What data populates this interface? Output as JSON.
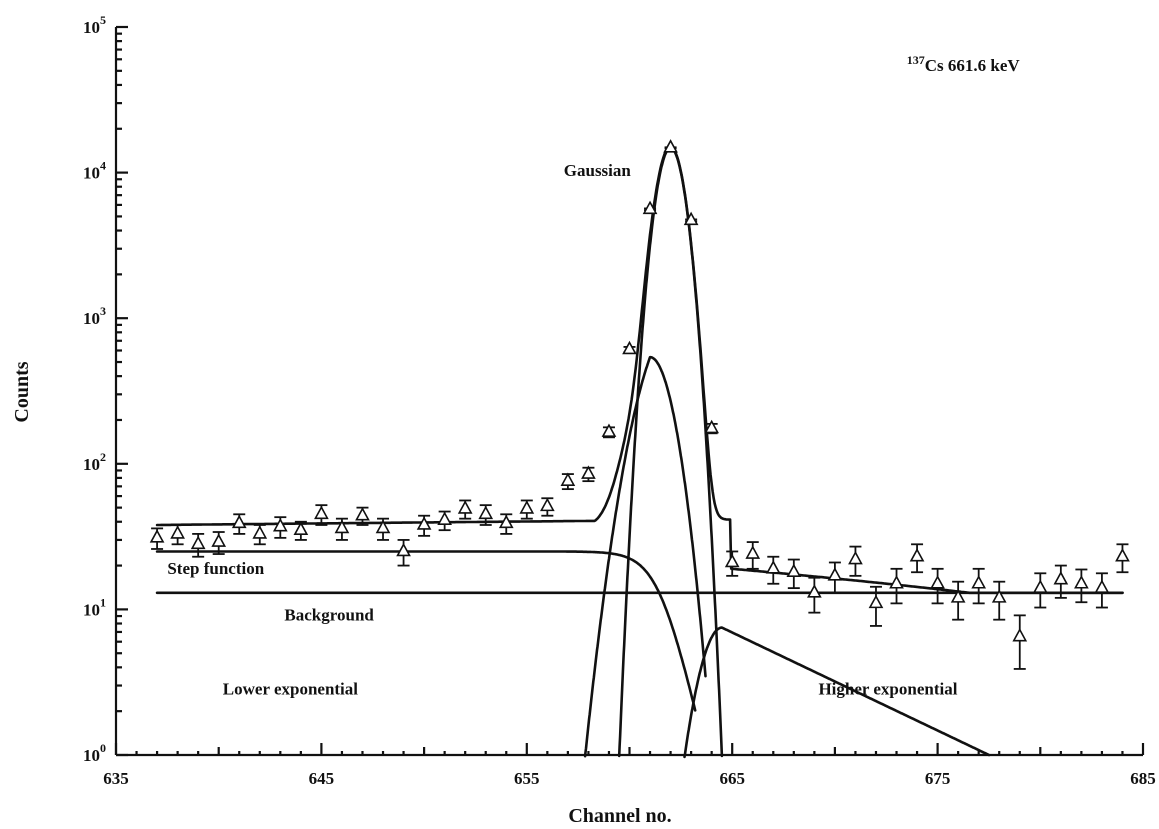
{
  "chart_data": {
    "type": "scatter",
    "title": "",
    "xlabel": "Channel no.",
    "ylabel": "Counts",
    "xlim": [
      635,
      685
    ],
    "ylim": [
      1,
      100000
    ],
    "y_scale": "log",
    "grid": false,
    "x_ticks": [
      "635",
      "645",
      "655",
      "665",
      "675",
      "685"
    ],
    "x_tick_values": [
      635,
      645,
      655,
      665,
      675,
      685
    ],
    "y_tick_values": [
      1,
      10,
      100,
      1000,
      10000,
      100000
    ],
    "y_tick_base": "10",
    "y_tick_exponents": [
      "0",
      "1",
      "2",
      "3",
      "4",
      "5"
    ],
    "annotations": [
      {
        "id": "source",
        "superscript": "137",
        "text": "Cs 661.6 keV",
        "x": 673.5,
        "y": 50000
      },
      {
        "id": "gaussian",
        "text": "Gaussian",
        "x": 656.8,
        "y": 9500
      },
      {
        "id": "step",
        "text": "Step function",
        "x": 637.5,
        "y": 17.5
      },
      {
        "id": "background",
        "text": "Background",
        "x": 643.2,
        "y": 8.4
      },
      {
        "id": "lower-exp",
        "text": "Lower exponential",
        "x": 640.2,
        "y": 2.6
      },
      {
        "id": "higher-exp",
        "text": "Higher exponential",
        "x": 669.2,
        "y": 2.6
      }
    ],
    "series": [
      {
        "kind": "points",
        "x": [
          637,
          638,
          639,
          640,
          641,
          642,
          643,
          644,
          645,
          646,
          647,
          648,
          649,
          650,
          651,
          652,
          653,
          654,
          655,
          656,
          657,
          658,
          659,
          660,
          661,
          662,
          663,
          664,
          665,
          666,
          667,
          668,
          669,
          670,
          671,
          672,
          673,
          674,
          675,
          676,
          677,
          678,
          679,
          680,
          681,
          682,
          683,
          684
        ],
        "y": [
          31,
          33,
          28,
          29,
          39,
          33,
          37,
          35,
          45,
          36,
          44,
          36,
          25,
          38,
          41,
          49,
          45,
          39,
          49,
          51,
          76,
          85,
          165,
          610,
          5600,
          14800,
          4700,
          175,
          21,
          24,
          19,
          18,
          13,
          17,
          22,
          11,
          15,
          23,
          15,
          12,
          15,
          12,
          6.5,
          14,
          16,
          15,
          14,
          23
        ],
        "yerr": [
          5,
          5,
          5,
          5,
          6,
          5,
          6,
          5,
          7,
          6,
          6,
          6,
          5,
          6,
          6,
          7,
          7,
          6,
          7,
          7,
          9,
          9,
          13,
          25,
          75,
          120,
          70,
          13,
          4,
          5,
          4,
          4,
          3.5,
          4,
          5,
          3.3,
          4,
          5,
          4,
          3.5,
          4,
          3.5,
          2.6,
          3.7,
          4,
          3.8,
          3.7,
          5
        ]
      },
      {
        "kind": "total-fit",
        "x": [],
        "y": []
      },
      {
        "kind": "gaussian",
        "x": [],
        "y": []
      },
      {
        "kind": "step-function",
        "x": [],
        "y": []
      },
      {
        "kind": "background",
        "x": [
          637,
          684
        ],
        "y": [
          13,
          13
        ]
      },
      {
        "kind": "lower-exponential",
        "x": [],
        "y": []
      },
      {
        "kind": "higher-exponential",
        "x": [],
        "y": []
      }
    ]
  }
}
